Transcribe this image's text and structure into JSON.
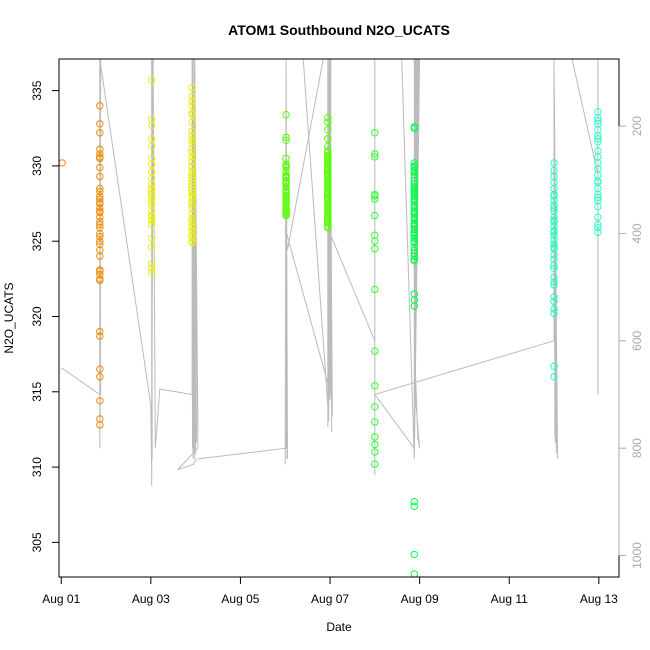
{
  "chart_data": {
    "type": "scatter",
    "title": "ATOM1 Southbound N2O_UCATS",
    "xlabel": "Date",
    "ylabel": "N2O_UCATS",
    "x_axis": {
      "unit": "days since Aug 01",
      "range": [
        -0.05,
        12.45
      ],
      "ticks": [
        {
          "x": 0,
          "label": "Aug 01"
        },
        {
          "x": 2,
          "label": "Aug 03"
        },
        {
          "x": 4,
          "label": "Aug 05"
        },
        {
          "x": 6,
          "label": "Aug 07"
        },
        {
          "x": 8,
          "label": "Aug 09"
        },
        {
          "x": 10,
          "label": "Aug 11"
        },
        {
          "x": 12,
          "label": "Aug 13"
        }
      ]
    },
    "y_axis": {
      "range": [
        302.7,
        337.1
      ],
      "ticks": [
        305,
        310,
        315,
        320,
        325,
        330,
        335
      ]
    },
    "y2_axis": {
      "note": "secondary axis (pressure, inverted)",
      "range": [
        1040,
        75
      ],
      "ticks": [
        200,
        400,
        600,
        800,
        1000
      ],
      "color": "#aaaaaa"
    },
    "grid": false,
    "legend": "none",
    "colors": {
      "aug01": "#f28a00",
      "aug02": "#f5a800",
      "aug03": "#ecf000",
      "aug05": "#55ff00",
      "aug07": "#33ff33",
      "aug08": "#00ff44",
      "aug11": "#22ffbb",
      "aug12": "#2bffd0",
      "profile_line": "#bbbbbb"
    },
    "series": [
      {
        "color": "#f28a00",
        "x": [
          0.02
        ],
        "y": [
          330.2
        ]
      },
      {
        "color": "#f28a00",
        "x": [
          0.86,
          0.86,
          0.86,
          0.86,
          0.86,
          0.86,
          0.86,
          0.86,
          0.86,
          0.86,
          0.86,
          0.86,
          0.86,
          0.86,
          0.86,
          0.86,
          0.86,
          0.86,
          0.86,
          0.86,
          0.86,
          0.86,
          0.86,
          0.86,
          0.86,
          0.86,
          0.86,
          0.86,
          0.86,
          0.86,
          0.86,
          0.86,
          0.86,
          0.86,
          0.86,
          0.86,
          0.86,
          0.86,
          0.86,
          0.86
        ],
        "y": [
          334.0,
          332.8,
          332.2,
          331.1,
          330.8,
          330.6,
          330.5,
          329.9,
          329.3,
          328.5,
          328.3,
          328.0,
          327.8,
          327.6,
          327.5,
          327.2,
          327.0,
          326.9,
          326.6,
          326.3,
          326.1,
          325.9,
          325.5,
          325.3,
          325.0,
          324.8,
          324.4,
          324.0,
          323.1,
          323.0,
          322.8,
          322.5,
          322.4,
          319.0,
          318.7,
          316.5,
          314.4,
          313.2,
          312.8,
          316.0
        ]
      },
      {
        "color": "#ecf000",
        "x": [
          2.02,
          2.02,
          2.02,
          2.02,
          2.02,
          2.02,
          2.02,
          2.02,
          2.02,
          2.02,
          2.02,
          2.02,
          2.02,
          2.02,
          2.02,
          2.02,
          2.02,
          2.02,
          2.02,
          2.02,
          2.02,
          2.02,
          2.02,
          2.02,
          2.02,
          2.02
        ],
        "y": [
          335.7,
          333.1,
          332.7,
          331.8,
          331.3,
          330.5,
          330.1,
          329.6,
          329.2,
          328.8,
          328.5,
          328.1,
          327.9,
          327.6,
          327.4,
          327.0,
          326.7,
          326.4,
          326.1,
          325.2,
          324.6,
          323.5,
          323.2,
          322.9,
          326.6,
          328.3
        ]
      },
      {
        "color": "#ecf000",
        "x": [
          2.92,
          2.92,
          2.92,
          2.92,
          2.92,
          2.92,
          2.92,
          2.92,
          2.92,
          2.92,
          2.92,
          2.92,
          2.92,
          2.92,
          2.92,
          2.92,
          2.92,
          2.92,
          2.92,
          2.92,
          2.92,
          2.92,
          2.92,
          2.92,
          2.92,
          2.92,
          2.92,
          2.92,
          2.92,
          2.92,
          2.92,
          2.92,
          2.92,
          2.92,
          2.92,
          2.92,
          2.92,
          2.92,
          2.92,
          2.92
        ],
        "y": [
          335.2,
          334.6,
          334.0,
          333.5,
          332.9,
          332.3,
          331.7,
          331.1,
          330.6,
          330.0,
          329.6,
          329.2,
          328.8,
          328.4,
          328.0,
          327.6,
          327.2,
          326.8,
          326.3,
          325.9,
          325.4,
          325.0,
          324.9,
          330.9,
          331.5,
          329.4,
          328.6,
          327.9,
          326.5,
          325.7,
          334.3,
          332.0,
          330.3,
          329.9,
          329.0,
          328.2,
          327.4,
          326.0,
          325.2,
          333.4
        ]
      },
      {
        "color": "#55ff00",
        "x": [
          5.02,
          5.02,
          5.02,
          5.02,
          5.02,
          5.02,
          5.02,
          5.02,
          5.02,
          5.02,
          5.02,
          5.02,
          5.02,
          5.02,
          5.02,
          5.02,
          5.02,
          5.02,
          5.02,
          5.02,
          5.02,
          5.02,
          5.02,
          5.02,
          5.02,
          5.02,
          5.02,
          5.02,
          5.02,
          5.02
        ],
        "y": [
          333.4,
          331.9,
          331.7,
          330.5,
          330.1,
          329.9,
          329.6,
          329.4,
          329.2,
          329.0,
          328.8,
          328.6,
          328.4,
          328.2,
          328.0,
          327.8,
          327.6,
          327.4,
          327.2,
          327.0,
          326.8,
          326.7,
          327.9,
          328.3,
          329.3,
          330.0,
          328.9,
          327.7,
          327.1,
          326.9
        ]
      },
      {
        "color": "#55ff00",
        "x": [
          5.95,
          5.95,
          5.95,
          5.95,
          5.95,
          5.95,
          5.95,
          5.95,
          5.95,
          5.95,
          5.95,
          5.95,
          5.95,
          5.95,
          5.95,
          5.95,
          5.95,
          5.95,
          5.95,
          5.95,
          5.95,
          5.95,
          5.95,
          5.95,
          5.95,
          5.95,
          5.95,
          5.95,
          5.95,
          5.95,
          5.95,
          5.95,
          5.95,
          5.95,
          5.95,
          5.95,
          5.95,
          5.95,
          5.95,
          5.95,
          5.95,
          5.95,
          5.95,
          5.95,
          5.95,
          5.95,
          5.95,
          5.95,
          5.95,
          5.95
        ],
        "y": [
          333.2,
          332.9,
          332.4,
          331.8,
          331.3,
          330.9,
          330.7,
          330.5,
          330.3,
          330.1,
          329.9,
          329.7,
          329.5,
          329.3,
          329.1,
          328.9,
          328.7,
          328.5,
          328.3,
          328.1,
          327.9,
          327.7,
          327.5,
          327.3,
          327.1,
          326.9,
          326.7,
          326.5,
          326.2,
          326.0,
          330.6,
          330.2,
          329.8,
          329.4,
          329.0,
          328.6,
          328.2,
          327.8,
          327.4,
          327.0,
          326.6,
          326.3,
          331.0,
          330.4,
          329.6,
          328.8,
          328.0,
          327.2,
          326.4,
          325.9
        ]
      },
      {
        "color": "#33ff33",
        "x": [
          7.0,
          7.0,
          7.0,
          7.0,
          7.0,
          7.0,
          7.0,
          7.0,
          7.0,
          7.0,
          7.0,
          7.0,
          7.0,
          7.0,
          7.0,
          7.0,
          7.0,
          7.0,
          7.0
        ],
        "y": [
          332.2,
          330.8,
          330.6,
          328.1,
          328.0,
          326.7,
          325.4,
          325.0,
          324.5,
          321.8,
          317.7,
          315.4,
          314.0,
          313.0,
          312.0,
          311.5,
          311.0,
          310.2,
          327.8
        ]
      },
      {
        "color": "#00ff44",
        "x": [
          7.88,
          7.88,
          7.88,
          7.88,
          7.88,
          7.88,
          7.88,
          7.88,
          7.88,
          7.88,
          7.88,
          7.88,
          7.88,
          7.88,
          7.88,
          7.88,
          7.88,
          7.88,
          7.88,
          7.88,
          7.88,
          7.88,
          7.88,
          7.88,
          7.88,
          7.88,
          7.88,
          7.88,
          7.88,
          7.88,
          7.88,
          7.88,
          7.88,
          7.88,
          7.88,
          7.88,
          7.88,
          7.88,
          7.88,
          7.88,
          7.88,
          7.88,
          7.88,
          7.88,
          7.88,
          7.88,
          7.88,
          7.88,
          7.88,
          7.88
        ],
        "y": [
          332.6,
          332.5,
          330.2,
          329.9,
          329.6,
          329.4,
          329.2,
          329.0,
          328.8,
          328.6,
          328.4,
          328.2,
          328.0,
          327.8,
          327.6,
          327.4,
          327.2,
          327.0,
          326.8,
          326.6,
          326.4,
          326.2,
          326.0,
          325.8,
          325.6,
          325.4,
          325.2,
          324.9,
          324.6,
          324.4,
          324.2,
          323.7,
          321.1,
          320.7,
          307.7,
          307.4,
          304.2,
          302.9,
          329.7,
          328.5,
          327.7,
          326.1,
          325.0,
          323.8,
          321.5,
          330.0,
          328.3,
          326.9,
          325.5,
          324.0
        ]
      },
      {
        "color": "#22ffbb",
        "x": [
          11.0,
          11.0,
          11.0,
          11.0,
          11.0,
          11.0,
          11.0,
          11.0,
          11.0,
          11.0,
          11.0,
          11.0,
          11.0,
          11.0,
          11.0,
          11.0,
          11.0,
          11.0,
          11.0,
          11.0,
          11.0,
          11.0,
          11.0,
          11.0,
          11.0,
          11.0,
          11.0,
          11.0,
          11.0,
          11.0,
          11.0,
          11.0,
          11.0,
          11.0,
          11.0
        ],
        "y": [
          330.2,
          329.7,
          329.3,
          328.9,
          328.5,
          328.1,
          327.7,
          327.4,
          327.0,
          326.6,
          326.3,
          326.0,
          325.7,
          325.4,
          325.1,
          324.8,
          324.5,
          324.1,
          323.8,
          323.2,
          322.6,
          322.1,
          321.3,
          321.0,
          320.5,
          316.7,
          316.0,
          328.0,
          327.2,
          326.4,
          325.6,
          324.6,
          323.4,
          322.3,
          320.2
        ]
      },
      {
        "color": "#2bffd0",
        "x": [
          11.98,
          11.98,
          11.98,
          11.98,
          11.98,
          11.98,
          11.98,
          11.98,
          11.98,
          11.98,
          11.98,
          11.98,
          11.98,
          11.98,
          11.98,
          11.98,
          11.98,
          11.98,
          11.98,
          11.98,
          11.98,
          11.98,
          11.98,
          11.98
        ],
        "y": [
          333.6,
          333.2,
          332.8,
          332.4,
          332.0,
          331.6,
          331.0,
          330.6,
          330.2,
          329.8,
          329.4,
          328.9,
          328.5,
          328.1,
          327.7,
          327.3,
          326.6,
          326.1,
          325.9,
          325.6,
          333.0,
          331.8,
          329.0,
          327.9
        ]
      }
    ],
    "profile_lines": [
      {
        "x": [
          0.0,
          0.86,
          0.86,
          0.88,
          0.86,
          0.86,
          0.86,
          0.87,
          0.86,
          0.86,
          0.87,
          0.86,
          0.86,
          0.86,
          0.88,
          0.86,
          0.86,
          0.86,
          0.87,
          0.86,
          0.86,
          0.86,
          0.88,
          0.86,
          0.86,
          0.86,
          0.87,
          0.86,
          0.86,
          0.86,
          0.86,
          2.0
        ],
        "y": [
          650,
          700,
          75,
          700,
          75,
          700,
          75,
          745,
          75,
          750,
          75,
          740,
          75,
          780,
          75,
          790,
          75,
          700,
          75,
          720,
          75,
          760,
          75,
          800,
          75,
          745,
          75,
          705,
          75,
          690,
          75,
          720
        ]
      },
      {
        "x": [
          2.0,
          2.02,
          2.02,
          2.03,
          2.02,
          2.02,
          2.04,
          2.02,
          2.02,
          2.03,
          2.02,
          2.02,
          2.03,
          2.02,
          2.05,
          2.1,
          2.2,
          2.92
        ],
        "y": [
          720,
          850,
          75,
          800,
          75,
          830,
          75,
          860,
          75,
          820,
          75,
          870,
          75,
          840,
          75,
          800,
          690,
          700
        ]
      },
      {
        "x": [
          2.92,
          2.92,
          2.93,
          2.92,
          2.95,
          2.92,
          2.93,
          2.92,
          2.94,
          2.92,
          2.93,
          2.92,
          2.95,
          2.92,
          2.96,
          2.92,
          2.97,
          2.92,
          2.98,
          2.92,
          2.99,
          2.93,
          3.0,
          2.96,
          3.02,
          2.98,
          3.05,
          2.98,
          3.05,
          2.6,
          2.95,
          3.02
        ],
        "y": [
          700,
          75,
          760,
          75,
          780,
          75,
          800,
          75,
          820,
          75,
          780,
          75,
          810,
          75,
          760,
          75,
          800,
          75,
          820,
          75,
          790,
          75,
          810,
          75,
          790,
          75,
          770,
          75,
          800,
          840,
          830,
          820
        ]
      },
      {
        "x": [
          3.05,
          5.02,
          5.02,
          5.0,
          5.02,
          5.03,
          5.02,
          5.04,
          5.02,
          5.02,
          5.02,
          5.03,
          5.02,
          5.05,
          5.02,
          5.4,
          5.95
        ],
        "y": [
          820,
          800,
          75,
          830,
          75,
          800,
          75,
          820,
          75,
          760,
          75,
          790,
          75,
          820,
          75,
          75,
          720
        ]
      },
      {
        "x": [
          5.95,
          5.95,
          5.97,
          5.98,
          5.95,
          5.99,
          6.0,
          6.02,
          5.97,
          6.0,
          6.03,
          5.98,
          6.04,
          5.95,
          6.05,
          6.0,
          6.02,
          6.0,
          6.05,
          5.95,
          6.02,
          5.0,
          5.05,
          5.85,
          5.95
        ],
        "y": [
          720,
          75,
          700,
          75,
          760,
          75,
          710,
          75,
          750,
          75,
          720,
          75,
          770,
          75,
          730,
          75,
          700,
          75,
          740,
          75,
          700,
          390,
          430,
          75,
          75
        ]
      },
      {
        "x": [
          5.95,
          7.0,
          7.0,
          7.0,
          7.0,
          7.0,
          7.0,
          7.0,
          7.0
        ],
        "y": [
          390,
          600,
          75,
          800,
          75,
          700,
          75,
          850,
          75
        ]
      },
      {
        "x": [
          7.0,
          7.88,
          7.88,
          7.88,
          7.9,
          7.88,
          7.92,
          7.88,
          7.94,
          7.88,
          7.96,
          7.88,
          7.98,
          7.88,
          8.0,
          7.88,
          7.94,
          7.88,
          7.96,
          7.88,
          7.98,
          7.88,
          7.6,
          7.88,
          7.88,
          7.96,
          8.0,
          7.9
        ],
        "y": [
          700,
          800,
          75,
          780,
          75,
          820,
          75,
          800,
          75,
          810,
          75,
          790,
          75,
          820,
          75,
          800,
          75,
          780,
          75,
          800,
          75,
          820,
          75,
          75,
          600,
          780,
          800,
          700
        ]
      },
      {
        "x": [
          7.0,
          11.0,
          11.0,
          11.02,
          11.0,
          11.03,
          11.0,
          11.04,
          11.0,
          11.05,
          11.0,
          11.06,
          11.0,
          11.07,
          11.0,
          11.08,
          11.0,
          11.05,
          11.0,
          11.06,
          11.0,
          11.4,
          11.98
        ],
        "y": [
          700,
          600,
          75,
          780,
          75,
          790,
          75,
          770,
          75,
          810,
          75,
          800,
          75,
          790,
          75,
          820,
          75,
          800,
          75,
          780,
          75,
          75,
          290
        ]
      },
      {
        "x": [
          11.98,
          11.98,
          11.98,
          11.98,
          11.98,
          11.98,
          11.98
        ],
        "y": [
          290,
          75,
          700,
          75,
          690,
          75,
          580
        ]
      }
    ]
  }
}
